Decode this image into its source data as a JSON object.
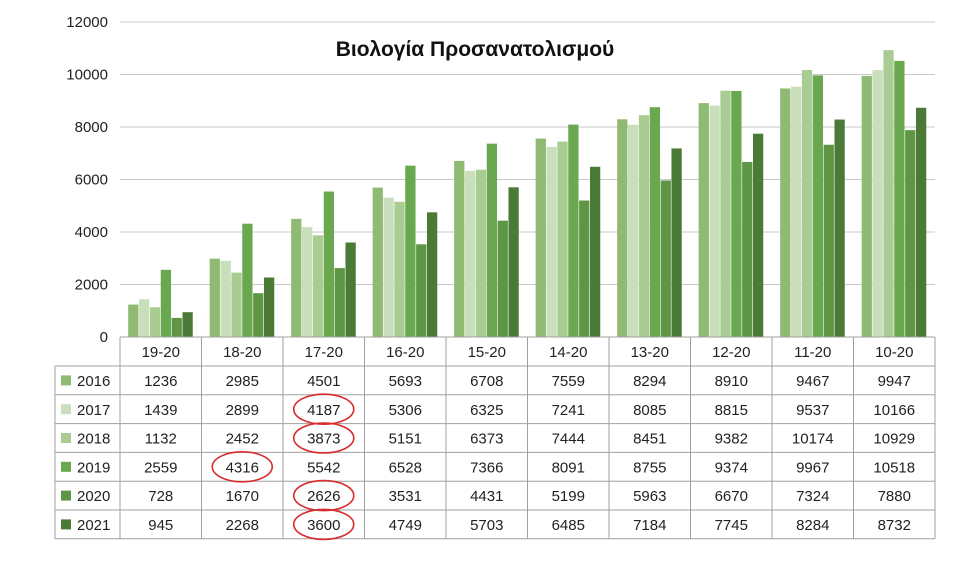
{
  "chart_data": {
    "type": "bar",
    "title": "Βιολογία Προσανατολισμού",
    "xlabel": "",
    "ylabel": "",
    "ylim": [
      0,
      12000
    ],
    "yticks": [
      0,
      2000,
      4000,
      6000,
      8000,
      10000,
      12000
    ],
    "grid": true,
    "legend": "data-table",
    "categories": [
      "19-20",
      "18-20",
      "17-20",
      "16-20",
      "15-20",
      "14-20",
      "13-20",
      "12-20",
      "11-20",
      "10-20"
    ],
    "series": [
      {
        "name": "2016",
        "color": "#8fba74",
        "values": [
          1236,
          2985,
          4501,
          5693,
          6708,
          7559,
          8294,
          8910,
          9467,
          9947
        ]
      },
      {
        "name": "2017",
        "color": "#c9dfbb",
        "values": [
          1439,
          2899,
          4187,
          5306,
          6325,
          7241,
          8085,
          8815,
          9537,
          10166
        ]
      },
      {
        "name": "2018",
        "color": "#a8cc92",
        "values": [
          1132,
          2452,
          3873,
          5151,
          6373,
          7444,
          8451,
          9382,
          10174,
          10929
        ]
      },
      {
        "name": "2019",
        "color": "#6aa84f",
        "values": [
          2559,
          4316,
          5542,
          6528,
          7366,
          8091,
          8755,
          9374,
          9967,
          10518
        ]
      },
      {
        "name": "2020",
        "color": "#5e9646",
        "values": [
          728,
          1670,
          2626,
          3531,
          4431,
          5199,
          5963,
          6670,
          7324,
          7880
        ]
      },
      {
        "name": "2021",
        "color": "#4a7a35",
        "values": [
          945,
          2268,
          3600,
          4749,
          5703,
          6485,
          7184,
          7745,
          8284,
          8732
        ]
      }
    ],
    "annotations": [
      {
        "type": "red-circle",
        "series": "2017",
        "category": "17-20"
      },
      {
        "type": "red-circle",
        "series": "2018",
        "category": "17-20"
      },
      {
        "type": "red-circle",
        "series": "2019",
        "category": "18-20"
      },
      {
        "type": "red-circle",
        "series": "2020",
        "category": "17-20"
      },
      {
        "type": "red-circle",
        "series": "2021",
        "category": "17-20"
      }
    ],
    "annotation_color": "#d92b2b",
    "gridline_color": "#c8c8c8",
    "table_border_color": "#a0a0a0"
  }
}
